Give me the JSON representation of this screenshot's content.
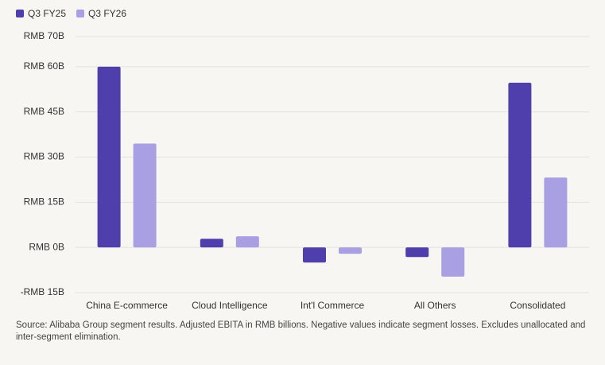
{
  "chart_data": {
    "type": "bar",
    "categories": [
      "China E-commerce",
      "Cloud Intelligence",
      "Int'l Commerce",
      "All Others",
      "Consolidated"
    ],
    "series": [
      {
        "name": "Q3 FY25",
        "color": "#4f3fad",
        "values": [
          60.0,
          2.9,
          -5.0,
          -3.2,
          54.7
        ]
      },
      {
        "name": "Q3 FY26",
        "color": "#a9a0e3",
        "values": [
          34.5,
          3.7,
          -2.1,
          -9.7,
          23.2
        ]
      }
    ],
    "ylim": [
      -15,
      70
    ],
    "yticks": [
      {
        "value": -15,
        "label": "-RMB 15B"
      },
      {
        "value": 0,
        "label": "RMB 0B"
      },
      {
        "value": 15,
        "label": "RMB 15B"
      },
      {
        "value": 30,
        "label": "RMB 30B"
      },
      {
        "value": 45,
        "label": "RMB 45B"
      },
      {
        "value": 60,
        "label": "RMB 60B"
      },
      {
        "value": 70,
        "label": "RMB 70B"
      }
    ],
    "grid": true,
    "legend": "top-left",
    "note": "Source: Alibaba Group segment results. Adjusted EBITA in RMB billions. Negative values indicate segment losses. Excludes unallocated and inter-segment elimination."
  }
}
